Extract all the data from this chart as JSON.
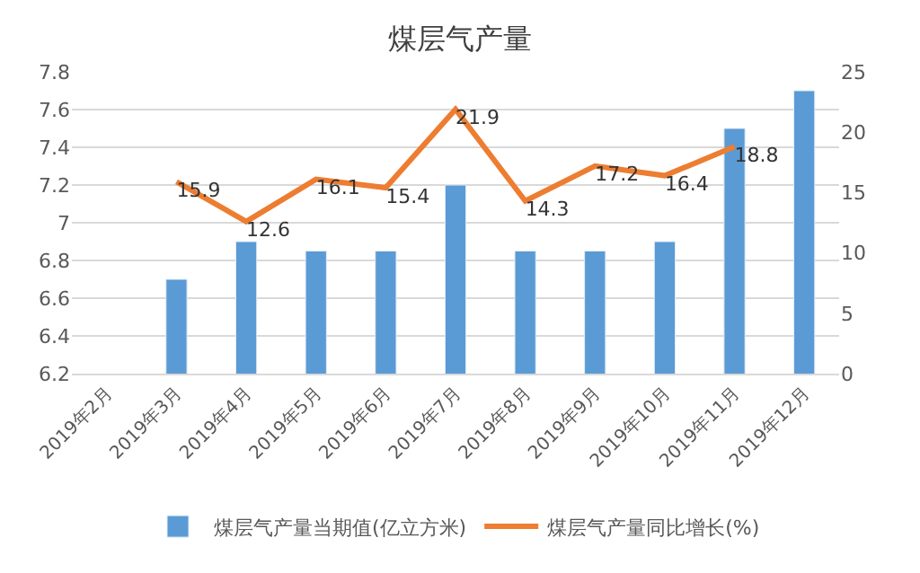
{
  "chart_data": {
    "type": "bar",
    "title": "煤层气产量",
    "categories": [
      "2019年2月",
      "2019年3月",
      "2019年4月",
      "2019年5月",
      "2019年6月",
      "2019年7月",
      "2019年8月",
      "2019年9月",
      "2019年10月",
      "2019年11月",
      "2019年12月"
    ],
    "series": [
      {
        "name": "煤层气产量当期值(亿立方米)",
        "color": "#5b9bd5",
        "values": [
          null,
          6.7,
          6.9,
          6.85,
          6.85,
          7.2,
          6.85,
          6.85,
          6.9,
          7.5,
          7.7
        ]
      },
      {
        "name": "煤层气产量同比增长(%)",
        "type": "line",
        "axis": "y2",
        "color": "#ed7d31",
        "values": [
          null,
          15.9,
          12.6,
          16.1,
          15.4,
          21.9,
          14.3,
          17.2,
          16.4,
          18.8,
          null
        ],
        "value_labels": [
          null,
          "15.9",
          "12.6",
          "16.1",
          "15.4",
          "21.9",
          "14.3",
          "17.2",
          "16.4",
          "18.8",
          null
        ]
      }
    ],
    "ylim": [
      6.2,
      7.8
    ],
    "yticks": [
      6.2,
      6.4,
      6.6,
      6.8,
      {
        "value": 7,
        "label": "7"
      },
      7.2,
      7.4,
      7.6,
      7.8
    ],
    "y2lim": [
      0,
      25
    ],
    "y2ticks": [
      0,
      5,
      10,
      15,
      20,
      25
    ],
    "grid": "y",
    "legend": "bottom",
    "marker": "none",
    "line_style": "solid"
  }
}
